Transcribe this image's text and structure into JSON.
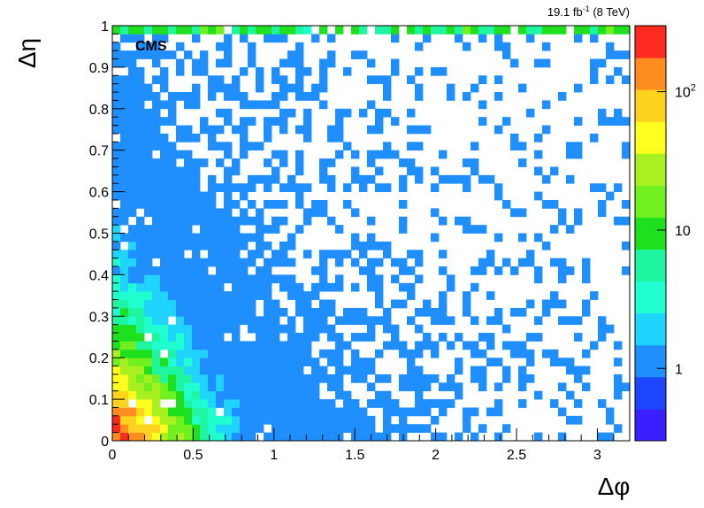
{
  "chart_data": {
    "type": "heatmap",
    "x_label": "Δφ",
    "y_label": "Δη",
    "lumi_label": "19.1 fb",
    "lumi_exp": "-1",
    "lumi_suffix": "(8 TeV)",
    "cms_label": "CMS",
    "xlim": [
      0,
      3.2
    ],
    "ylim": [
      0,
      1
    ],
    "x_ticks": [
      "0",
      "0.5",
      "1",
      "1.5",
      "2",
      "2.5",
      "3"
    ],
    "y_ticks": [
      "0",
      "0.1",
      "0.2",
      "0.3",
      "0.4",
      "0.5",
      "0.6",
      "0.7",
      "0.8",
      "0.9",
      "1"
    ],
    "z_scale": "log",
    "z_range": [
      0.3,
      300
    ],
    "z_tick_labels": [
      {
        "value": 1,
        "base": "1",
        "exp": ""
      },
      {
        "value": 10,
        "base": "10",
        "exp": ""
      },
      {
        "value": 100,
        "base": "10",
        "exp": "2"
      }
    ],
    "color_bands": [
      "#3a1fff",
      "#1f46ff",
      "#1f8fff",
      "#1fd4ff",
      "#1fffcf",
      "#1ff5a0",
      "#1fe01f",
      "#70f01f",
      "#a8f01f",
      "#ffff1f",
      "#ffd21f",
      "#ff8c1f",
      "#ff2a1f"
    ],
    "bins": {
      "nx": 65,
      "ny": 50,
      "x_min": 0,
      "x_max": 3.2,
      "y_min": 0,
      "y_max": 1
    },
    "notes": "Two-dimensional histogram of counts in (Δφ, Δη); highest counts concentrated near (0,0), sparse low counts elsewhere, and an elevated row at Δη≈1."
  }
}
